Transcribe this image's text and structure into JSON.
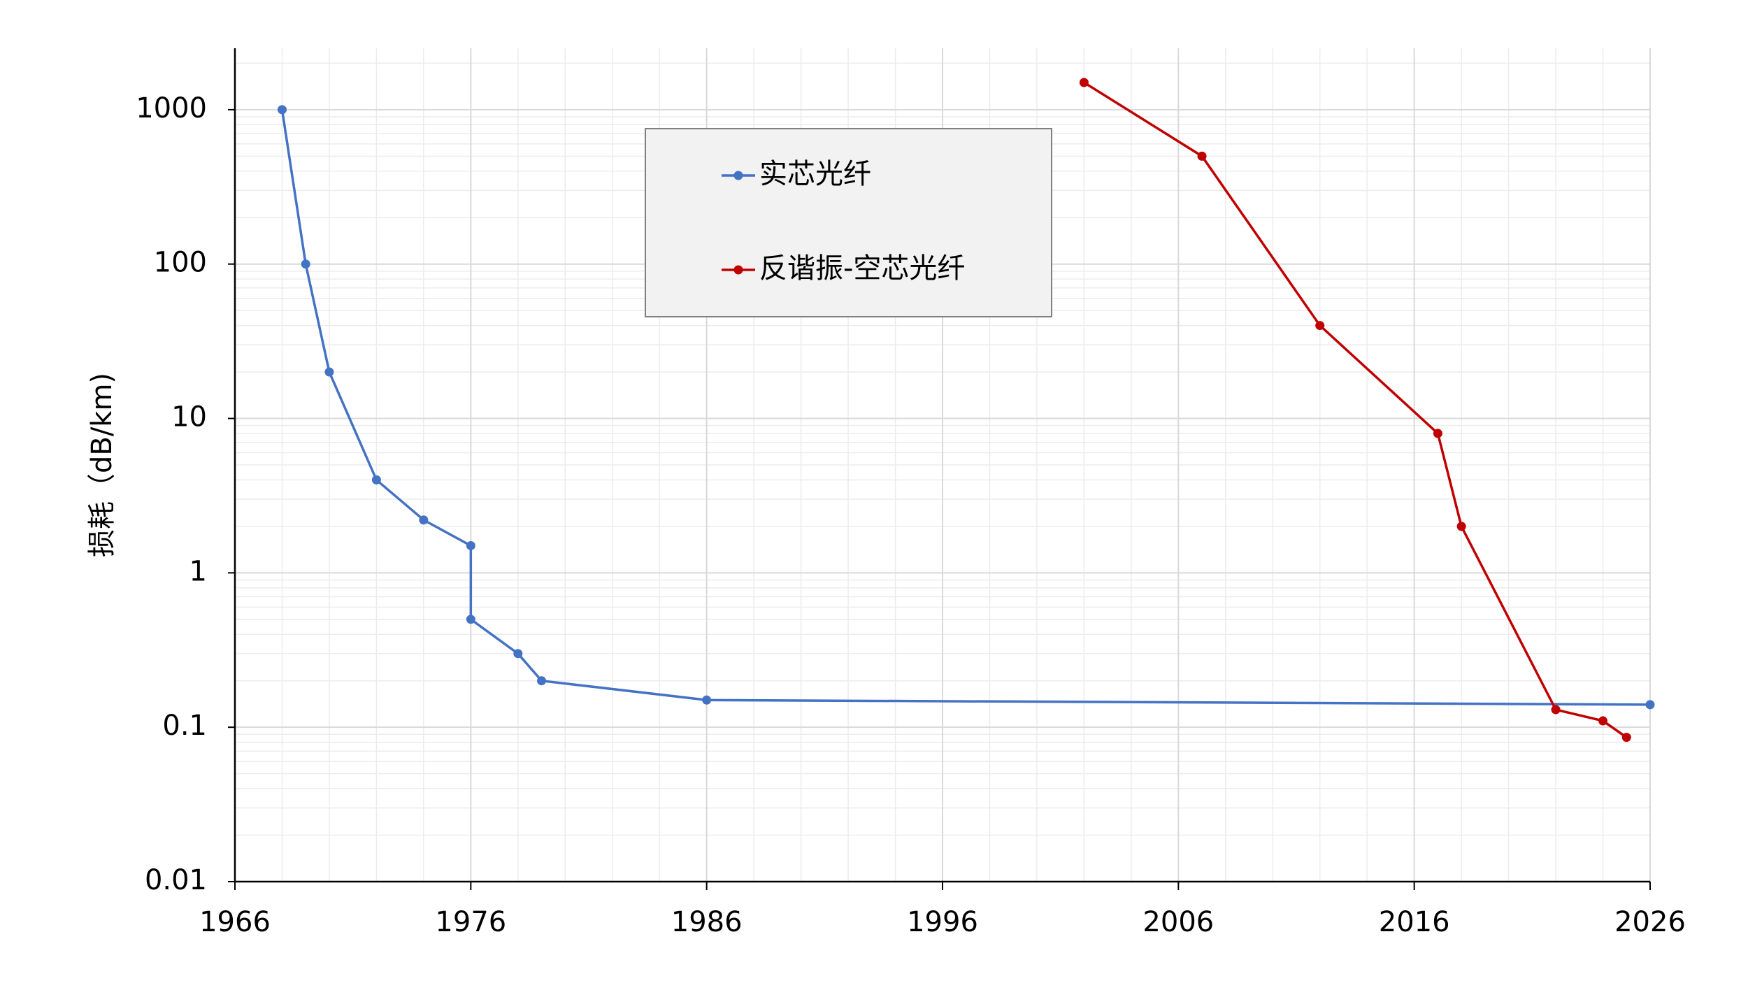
{
  "chart_data": {
    "type": "line",
    "y_label": "损耗（dB/km)",
    "log_y": true,
    "grid": true,
    "xlim": [
      1966,
      2026
    ],
    "xticks": [
      1966,
      1976,
      1986,
      1996,
      2006,
      2016,
      2026
    ],
    "ylim": [
      0.01,
      2500
    ],
    "yticks": [
      0.01,
      0.1,
      1,
      10,
      100,
      1000
    ],
    "series": [
      {
        "name": "实芯光纤",
        "color": "#4472c4",
        "x": [
          1968,
          1969,
          1970,
          1972,
          1974,
          1976,
          1976,
          1978,
          1979,
          1986,
          2026
        ],
        "values": [
          1000,
          100,
          20,
          4,
          2.2,
          1.5,
          0.5,
          0.3,
          0.2,
          0.15,
          0.14
        ]
      },
      {
        "name": "反谐振-空芯光纤",
        "color": "#c00000",
        "x": [
          2002,
          2007,
          2012,
          2017,
          2018,
          2022,
          2024,
          2025
        ],
        "values": [
          1500,
          500,
          40,
          8,
          2,
          0.13,
          0.11,
          0.086
        ]
      }
    ]
  }
}
